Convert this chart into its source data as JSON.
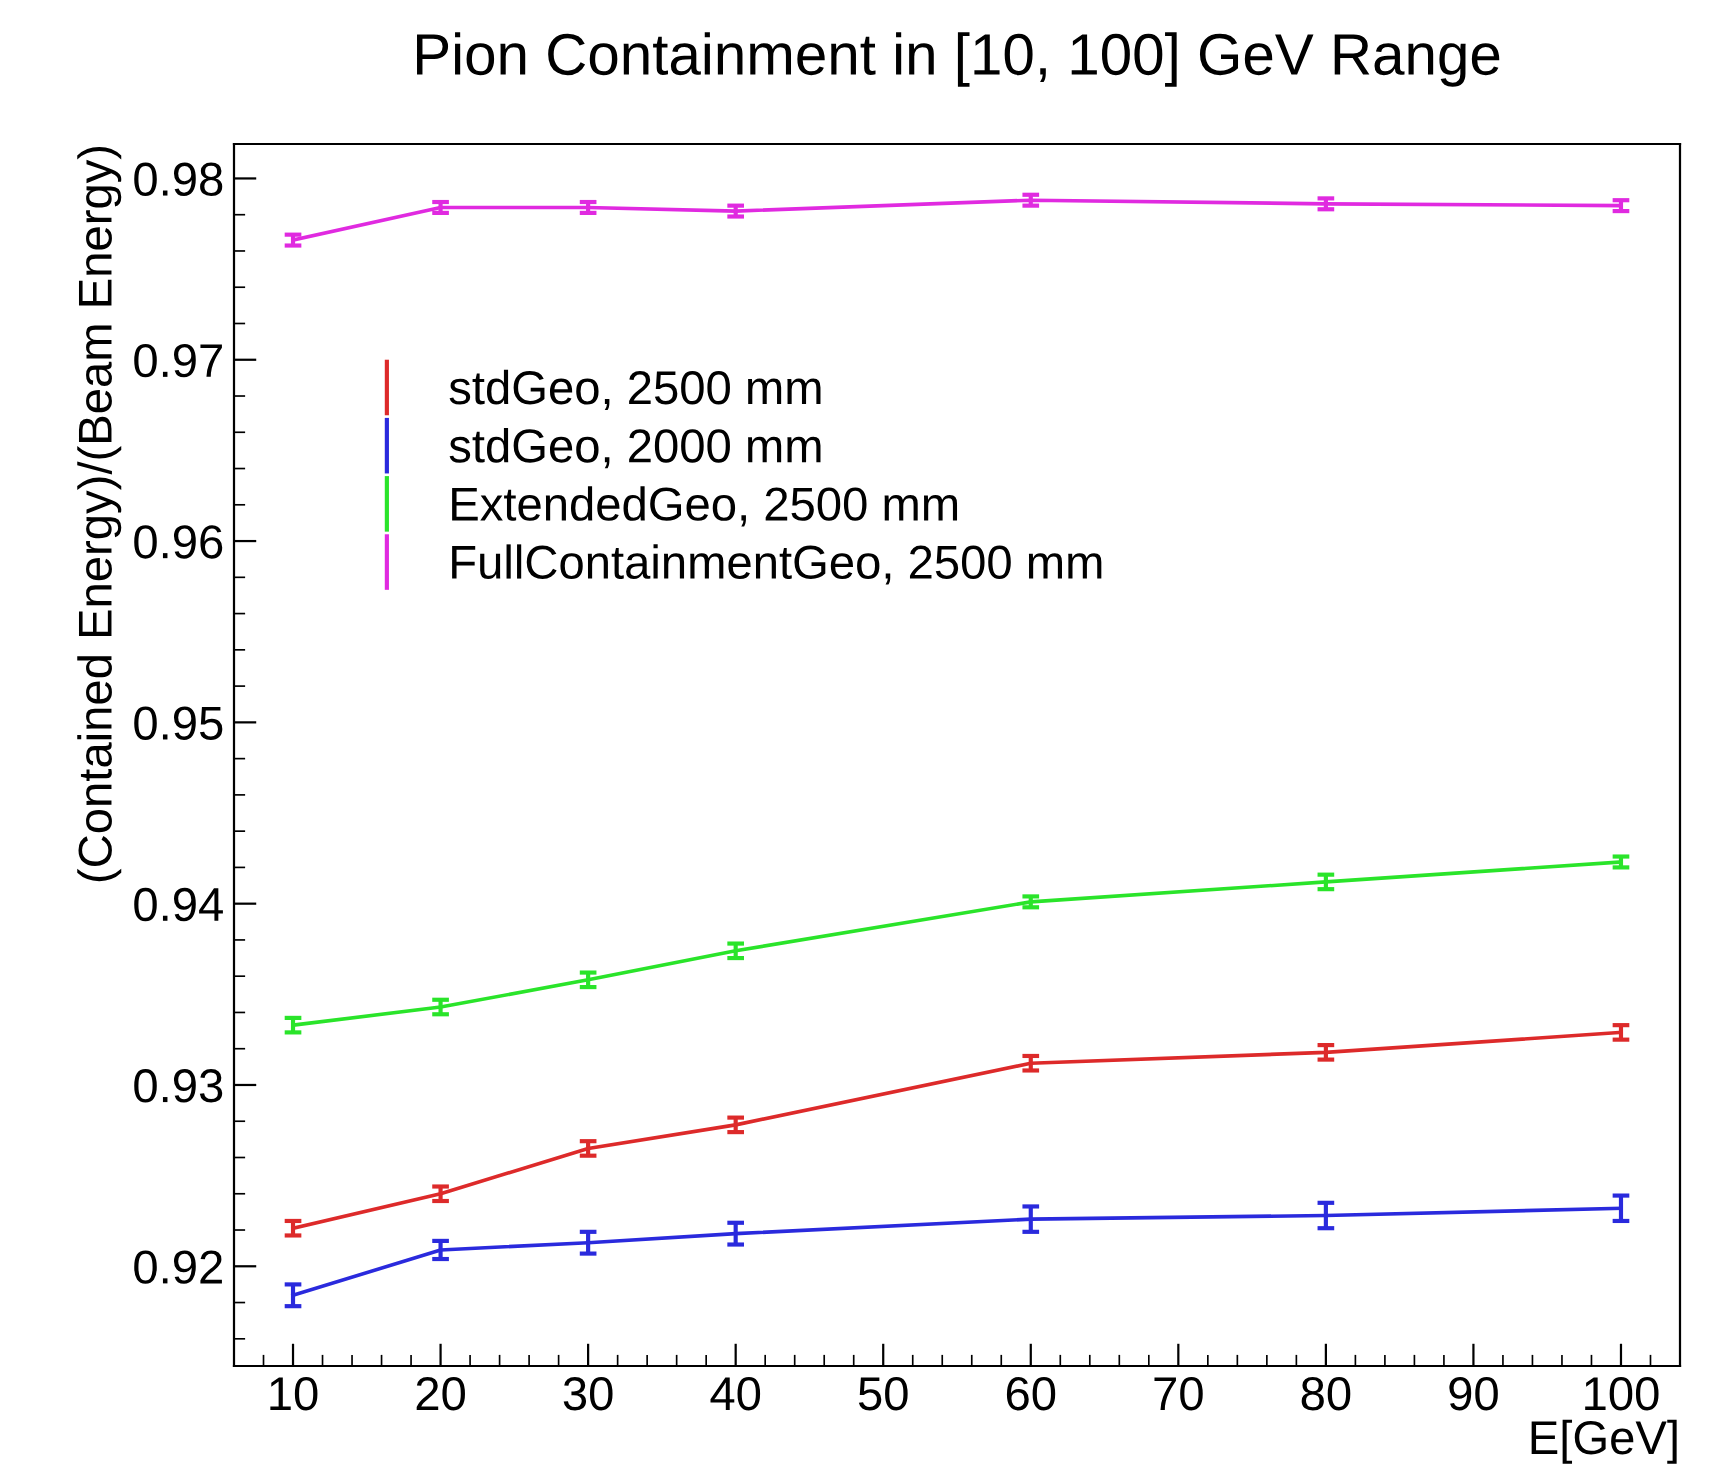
{
  "chart_data": {
    "type": "line",
    "title": "Pion Containment in [10, 100] GeV Range",
    "xlabel": "E[GeV]",
    "ylabel": "(Contained Energy)/(Beam Energy)",
    "x": [
      10,
      20,
      30,
      40,
      60,
      80,
      100
    ],
    "series": [
      {
        "name": "stdGeo, 2500 mm",
        "color": "#dd2a2a",
        "values": [
          0.9221,
          0.924,
          0.9265,
          0.9278,
          0.9312,
          0.9318,
          0.9329
        ],
        "errors": [
          0.0004,
          0.0004,
          0.0004,
          0.0004,
          0.0004,
          0.0004,
          0.0004
        ]
      },
      {
        "name": "stdGeo, 2000 mm",
        "color": "#2a2add",
        "values": [
          0.9184,
          0.9209,
          0.9213,
          0.9218,
          0.9226,
          0.9228,
          0.9232
        ],
        "errors": [
          0.0006,
          0.0005,
          0.0006,
          0.0006,
          0.0007,
          0.0007,
          0.0007
        ]
      },
      {
        "name": "ExtendedGeo, 2500 mm",
        "color": "#2ae42a",
        "values": [
          0.9333,
          0.9343,
          0.9358,
          0.9374,
          0.9401,
          0.9412,
          0.9423
        ],
        "errors": [
          0.0004,
          0.0004,
          0.0004,
          0.0004,
          0.0003,
          0.0004,
          0.0003
        ]
      },
      {
        "name": "FullContainmentGeo, 2500 mm",
        "color": "#e02ae0",
        "values": [
          0.9766,
          0.9784,
          0.9784,
          0.9782,
          0.9788,
          0.9786,
          0.9785
        ],
        "errors": [
          0.0003,
          0.0003,
          0.0003,
          0.0003,
          0.0003,
          0.0003,
          0.0003
        ]
      }
    ],
    "xlim": [
      6,
      104
    ],
    "ylim": [
      0.9145,
      0.9819
    ],
    "xticks": [
      10,
      20,
      30,
      40,
      50,
      60,
      70,
      80,
      90,
      100
    ],
    "yticks": [
      0.92,
      0.93,
      0.94,
      0.95,
      0.96,
      0.97,
      0.98
    ],
    "grid": false,
    "legend": "top left",
    "marker": "none",
    "line_style": "solid"
  }
}
